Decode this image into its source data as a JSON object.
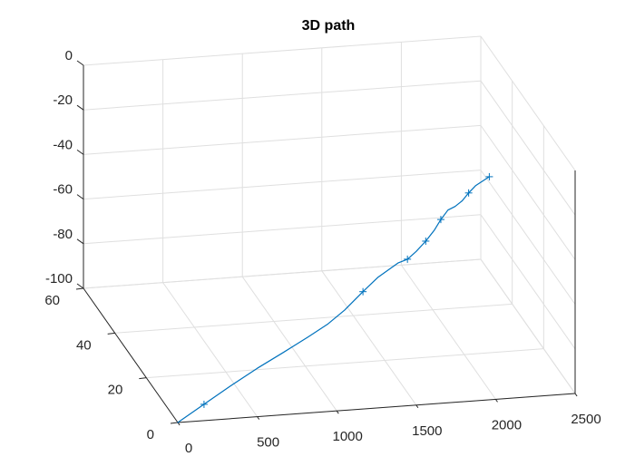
{
  "chart_data": {
    "type": "line",
    "title": "3D path",
    "xlabel": "",
    "ylabel": "",
    "zlabel": "",
    "xlim": [
      0,
      2500
    ],
    "ylim": [
      0,
      60
    ],
    "zlim": [
      -100,
      0
    ],
    "x_ticks": [
      "0",
      "500",
      "1000",
      "1500",
      "2000",
      "2500"
    ],
    "y_ticks": [
      "0",
      "20",
      "40",
      "60"
    ],
    "z_ticks": [
      "-100",
      "-80",
      "-60",
      "-40",
      "-20",
      "0"
    ],
    "grid": true,
    "box": "three back planes",
    "line_color": "#0072BD",
    "series": [
      {
        "marker": "+",
        "x": [
          0,
          165,
          330,
          500,
          660,
          820,
          945,
          1050,
          1165,
          1260,
          1385,
          1445,
          1500,
          1560,
          1615,
          1655,
          1700,
          1745,
          1790,
          1830,
          1875,
          1960
        ],
        "y": [
          0,
          0,
          0,
          0,
          0,
          0,
          0,
          0,
          0,
          0,
          0,
          0,
          0,
          0,
          0,
          0,
          0,
          0,
          0,
          0,
          0,
          0
        ],
        "z": [
          -100,
          -92.7,
          -85.4,
          -78.3,
          -72.2,
          -65.9,
          -60.7,
          -55.0,
          -47.4,
          -41.4,
          -35.7,
          -34.3,
          -31.1,
          -26.8,
          -22.1,
          -17.6,
          -13.6,
          -12.2,
          -9.9,
          -6.6,
          -3.5,
          0
        ],
        "markers_at": [
          1,
          8,
          11,
          13,
          15,
          19,
          21
        ]
      }
    ]
  }
}
